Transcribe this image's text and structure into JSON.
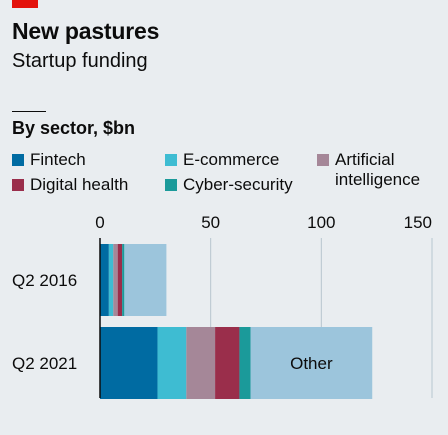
{
  "header": {
    "title": "New pastures",
    "subtitle": "Startup funding",
    "section": "By sector, $bn"
  },
  "colors": {
    "brand_red": "#e3120b",
    "fintech": "#006ba2",
    "ecommerce": "#3ebcd2",
    "ai": "#a58798",
    "digital_health": "#9a2e4b",
    "cyber": "#1b9a9a",
    "other": "#9cc5dc",
    "grid": "#b7c6cf",
    "axis": "#0c0c0c"
  },
  "legend": [
    {
      "name": "Fintech",
      "color": "#006ba2"
    },
    {
      "name": "E-commerce",
      "color": "#3ebcd2"
    },
    {
      "name": "Artificial\nintelligence",
      "color": "#a58798"
    },
    {
      "name": "Digital health",
      "color": "#9a2e4b"
    },
    {
      "name": "Cyber-security",
      "color": "#1b9a9a"
    }
  ],
  "chart_data": {
    "type": "bar",
    "orientation": "horizontal",
    "stacked": true,
    "title": "New pastures",
    "subtitle": "Startup funding",
    "xlabel": "",
    "ylabel": "",
    "xlim": [
      0,
      150
    ],
    "x_ticks": [
      "0",
      "50",
      "100",
      "150"
    ],
    "grid": true,
    "legend_position": "top",
    "categories": [
      "Q2 2016",
      "Q2 2021"
    ],
    "series": [
      {
        "name": "Fintech",
        "color": "#006ba2",
        "values": [
          4,
          26
        ]
      },
      {
        "name": "E-commerce",
        "color": "#3ebcd2",
        "values": [
          2,
          13
        ]
      },
      {
        "name": "Artificial intelligence",
        "color": "#a58798",
        "values": [
          2,
          13
        ]
      },
      {
        "name": "Digital health",
        "color": "#9a2e4b",
        "values": [
          2,
          11
        ]
      },
      {
        "name": "Cyber-security",
        "color": "#1b9a9a",
        "values": [
          1,
          5
        ]
      },
      {
        "name": "Other",
        "color": "#9cc5dc",
        "values": [
          19,
          55
        ]
      }
    ],
    "annotations": [
      {
        "text": "Other",
        "category": "Q2 2021",
        "series": "Other"
      }
    ]
  }
}
